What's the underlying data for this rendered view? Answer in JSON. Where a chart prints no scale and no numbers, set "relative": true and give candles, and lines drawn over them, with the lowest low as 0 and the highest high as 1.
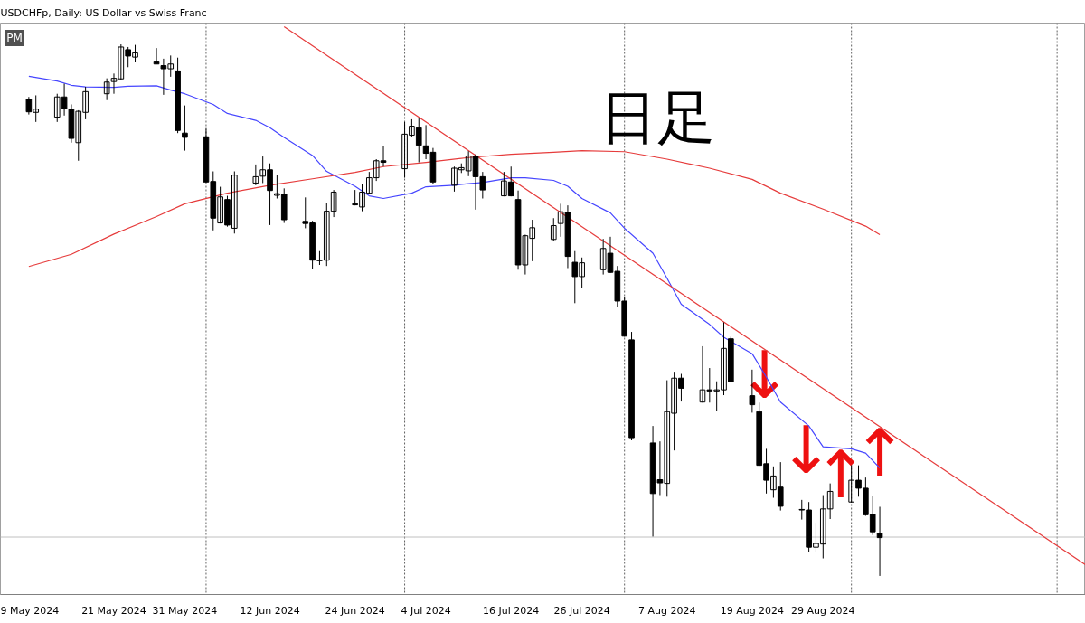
{
  "chart_data": {
    "type": "candlestick",
    "title": "USDCHFp, Daily:  US Dollar vs Swiss Franc",
    "subtitle": "PM",
    "relative": true,
    "color": "#000000",
    "x": [
      "2024-05-09",
      "2024-05-10",
      "2024-05-13",
      "2024-05-14",
      "2024-05-15",
      "2024-05-16",
      "2024-05-17",
      "2024-05-20",
      "2024-05-21",
      "2024-05-22",
      "2024-05-23",
      "2024-05-24",
      "2024-05-27",
      "2024-05-28",
      "2024-05-29",
      "2024-05-30",
      "2024-05-31",
      "2024-06-03",
      "2024-06-04",
      "2024-06-05",
      "2024-06-06",
      "2024-06-07",
      "2024-06-10",
      "2024-06-11",
      "2024-06-12",
      "2024-06-13",
      "2024-06-14",
      "2024-06-17",
      "2024-06-18",
      "2024-06-19",
      "2024-06-20",
      "2024-06-21",
      "2024-06-24",
      "2024-06-25",
      "2024-06-26",
      "2024-06-27",
      "2024-06-28",
      "2024-07-01",
      "2024-07-02",
      "2024-07-03",
      "2024-07-04",
      "2024-07-05",
      "2024-07-08",
      "2024-07-09",
      "2024-07-10",
      "2024-07-11",
      "2024-07-12",
      "2024-07-15",
      "2024-07-16",
      "2024-07-17",
      "2024-07-18",
      "2024-07-19",
      "2024-07-22",
      "2024-07-23",
      "2024-07-24",
      "2024-07-25",
      "2024-07-26",
      "2024-07-29",
      "2024-07-30",
      "2024-07-31",
      "2024-08-01",
      "2024-08-02",
      "2024-08-05",
      "2024-08-06",
      "2024-08-07",
      "2024-08-08",
      "2024-08-09",
      "2024-08-12",
      "2024-08-13",
      "2024-08-14",
      "2024-08-15",
      "2024-08-16",
      "2024-08-19",
      "2024-08-20",
      "2024-08-21",
      "2024-08-22",
      "2024-08-23",
      "2024-08-26",
      "2024-08-27",
      "2024-08-28",
      "2024-08-29",
      "2024-08-30",
      "2024-09-02",
      "2024-09-03",
      "2024-09-04",
      "2024-09-05",
      "2024-09-06"
    ],
    "ohlc": [
      [
        0.897,
        0.901,
        0.868,
        0.873
      ],
      [
        0.872,
        0.904,
        0.854,
        0.878
      ],
      [
        0.863,
        0.907,
        0.854,
        0.901
      ],
      [
        0.901,
        0.926,
        0.866,
        0.879
      ],
      [
        0.878,
        0.887,
        0.815,
        0.823
      ],
      [
        0.815,
        0.876,
        0.781,
        0.874
      ],
      [
        0.872,
        0.92,
        0.859,
        0.911
      ],
      [
        0.907,
        0.936,
        0.895,
        0.929
      ],
      [
        0.93,
        0.945,
        0.907,
        0.936
      ],
      [
        0.935,
        1.0,
        0.932,
        0.995
      ],
      [
        0.99,
        0.995,
        0.957,
        0.978
      ],
      [
        0.976,
        0.999,
        0.966,
        0.984
      ],
      [
        0.967,
        0.993,
        0.963,
        0.963
      ],
      [
        0.96,
        0.973,
        0.905,
        0.954
      ],
      [
        0.954,
        0.979,
        0.939,
        0.963
      ],
      [
        0.95,
        0.975,
        0.833,
        0.838
      ],
      [
        0.833,
        0.885,
        0.8,
        0.825
      ],
      [
        0.826,
        0.841,
        0.74,
        0.741
      ],
      [
        0.742,
        0.761,
        0.65,
        0.673
      ],
      [
        0.664,
        0.732,
        0.663,
        0.713
      ],
      [
        0.708,
        0.715,
        0.657,
        0.66
      ],
      [
        0.654,
        0.761,
        0.644,
        0.754
      ],
      [
        0.739,
        0.774,
        0.735,
        0.751
      ],
      [
        0.752,
        0.789,
        0.739,
        0.764
      ],
      [
        0.764,
        0.776,
        0.66,
        0.725
      ],
      [
        0.716,
        0.755,
        0.71,
        0.719
      ],
      [
        0.718,
        0.729,
        0.664,
        0.67
      ],
      [
        0.667,
        0.712,
        0.654,
        0.663
      ],
      [
        0.664,
        0.668,
        0.577,
        0.594
      ],
      [
        0.593,
        0.611,
        0.585,
        0.594
      ],
      [
        0.594,
        0.702,
        0.583,
        0.686
      ],
      [
        0.686,
        0.726,
        0.675,
        0.722
      ],
      [
        0.7,
        0.726,
        0.697,
        0.698
      ],
      [
        0.694,
        0.737,
        0.686,
        0.722
      ],
      [
        0.72,
        0.76,
        0.719,
        0.749
      ],
      [
        0.749,
        0.784,
        0.743,
        0.781
      ],
      [
        0.781,
        0.809,
        0.77,
        0.778
      ],
      [
        0.766,
        0.854,
        0.749,
        0.831
      ],
      [
        0.829,
        0.859,
        0.825,
        0.846
      ],
      [
        0.843,
        0.861,
        0.778,
        0.81
      ],
      [
        0.809,
        0.848,
        0.784,
        0.795
      ],
      [
        0.797,
        0.805,
        0.738,
        0.741
      ],
      [
        0.735,
        0.77,
        0.723,
        0.767
      ],
      [
        0.764,
        0.776,
        0.758,
        0.768
      ],
      [
        0.762,
        0.799,
        0.752,
        0.79
      ],
      [
        0.789,
        0.793,
        0.689,
        0.751
      ],
      [
        0.751,
        0.76,
        0.71,
        0.726
      ],
      [
        0.715,
        0.76,
        0.714,
        0.743
      ],
      [
        0.741,
        0.77,
        0.714,
        0.715
      ],
      [
        0.708,
        0.725,
        0.576,
        0.585
      ],
      [
        0.585,
        0.642,
        0.567,
        0.64
      ],
      [
        0.635,
        0.67,
        0.592,
        0.655
      ],
      [
        0.633,
        0.673,
        0.63,
        0.659
      ],
      [
        0.663,
        0.7,
        0.638,
        0.685
      ],
      [
        0.684,
        0.697,
        0.579,
        0.601
      ],
      [
        0.59,
        0.611,
        0.513,
        0.563
      ],
      [
        0.563,
        0.599,
        0.542,
        0.589
      ],
      [
        0.576,
        0.634,
        0.567,
        0.616
      ],
      [
        0.607,
        0.638,
        0.57,
        0.571
      ],
      [
        0.573,
        0.583,
        0.506,
        0.517
      ],
      [
        0.517,
        0.525,
        0.45,
        0.451
      ],
      [
        0.444,
        0.459,
        0.255,
        0.26
      ],
      [
        0.25,
        0.282,
        0.074,
        0.155
      ],
      [
        0.181,
        0.253,
        0.152,
        0.175
      ],
      [
        0.174,
        0.368,
        0.149,
        0.309
      ],
      [
        0.306,
        0.384,
        0.236,
        0.372
      ],
      [
        0.372,
        0.38,
        0.328,
        0.353
      ],
      [
        0.327,
        0.432,
        0.326,
        0.35
      ],
      [
        0.35,
        0.391,
        0.326,
        0.348
      ],
      [
        0.348,
        0.366,
        0.31,
        0.35
      ],
      [
        0.35,
        0.477,
        0.34,
        0.428
      ],
      [
        0.446,
        0.45,
        0.364,
        0.365
      ],
      [
        0.339,
        0.388,
        0.307,
        0.322
      ],
      [
        0.309,
        0.326,
        0.207,
        0.208
      ],
      [
        0.211,
        0.239,
        0.155,
        0.18
      ],
      [
        0.162,
        0.206,
        0.147,
        0.188
      ],
      [
        0.167,
        0.214,
        0.123,
        0.131
      ],
      [
        0.125,
        0.143,
        0.106,
        0.124
      ],
      [
        0.124,
        0.139,
        0.045,
        0.054
      ],
      [
        0.054,
        0.1,
        0.045,
        0.061
      ],
      [
        0.06,
        0.152,
        0.033,
        0.126
      ],
      [
        0.126,
        0.174,
        0.107,
        0.159
      ],
      [
        0.139,
        0.208,
        0.138,
        0.18
      ],
      [
        0.18,
        0.208,
        0.149,
        0.165
      ],
      [
        0.165,
        0.185,
        0.113,
        0.115
      ],
      [
        0.116,
        0.151,
        0.077,
        0.083
      ],
      [
        0.08,
        0.13,
        0.0,
        0.072
      ]
    ],
    "series": [
      {
        "type": "line",
        "color": "#4646ff",
        "x": [
          "2024-05-09",
          "2024-05-13",
          "2024-05-15",
          "2024-05-17",
          "2024-05-21",
          "2024-05-23",
          "2024-05-27",
          "2024-05-29",
          "2024-05-31",
          "2024-06-04",
          "2024-06-06",
          "2024-06-10",
          "2024-06-12",
          "2024-06-14",
          "2024-06-18",
          "2024-06-20",
          "2024-06-24",
          "2024-06-26",
          "2024-06-28",
          "2024-07-02",
          "2024-07-04",
          "2024-07-08",
          "2024-07-10",
          "2024-07-12",
          "2024-07-16",
          "2024-07-18",
          "2024-07-22",
          "2024-07-24",
          "2024-07-26",
          "2024-07-30",
          "2024-08-01",
          "2024-08-05",
          "2024-08-07",
          "2024-08-09",
          "2024-08-13",
          "2024-08-15",
          "2024-08-19",
          "2024-08-21",
          "2024-08-23",
          "2024-08-27",
          "2024-08-29",
          "2024-09-02",
          "2024-09-04",
          "2024-09-06"
        ],
        "values": [
          0.94,
          0.931,
          0.923,
          0.92,
          0.919,
          0.921,
          0.922,
          0.914,
          0.907,
          0.887,
          0.87,
          0.857,
          0.843,
          0.825,
          0.791,
          0.761,
          0.733,
          0.715,
          0.71,
          0.72,
          0.732,
          0.735,
          0.738,
          0.74,
          0.749,
          0.749,
          0.744,
          0.733,
          0.71,
          0.683,
          0.654,
          0.607,
          0.56,
          0.511,
          0.473,
          0.449,
          0.418,
          0.374,
          0.327,
          0.282,
          0.243,
          0.239,
          0.231,
          0.203
        ]
      },
      {
        "type": "line",
        "color": "#e63c3c",
        "x": [
          "2024-05-09",
          "2024-05-15",
          "2024-05-21",
          "2024-05-27",
          "2024-05-31",
          "2024-06-06",
          "2024-06-12",
          "2024-06-18",
          "2024-06-24",
          "2024-06-28",
          "2024-07-04",
          "2024-07-10",
          "2024-07-16",
          "2024-07-22",
          "2024-07-26",
          "2024-08-01",
          "2024-08-07",
          "2024-08-13",
          "2024-08-19",
          "2024-08-23",
          "2024-08-29",
          "2024-09-04",
          "2024-09-06"
        ],
        "values": [
          0.582,
          0.605,
          0.643,
          0.676,
          0.7,
          0.72,
          0.735,
          0.747,
          0.759,
          0.77,
          0.778,
          0.787,
          0.793,
          0.797,
          0.8,
          0.798,
          0.784,
          0.767,
          0.746,
          0.72,
          0.69,
          0.658,
          0.642
        ]
      },
      {
        "type": "line",
        "color": "#e63c3c",
        "x": [
          "2024-06-14",
          "2024-10-05"
        ],
        "values": [
          1.033,
          0.021
        ]
      }
    ],
    "xlim": [
      "2024-05-05",
      "2024-10-05"
    ],
    "xticks": [
      {
        "value": "2024-05-09",
        "label": "9 May 2024"
      },
      {
        "value": "2024-05-21",
        "label": "21 May 2024"
      },
      {
        "value": "2024-05-31",
        "label": "31 May 2024"
      },
      {
        "value": "2024-06-12",
        "label": "12 Jun 2024"
      },
      {
        "value": "2024-06-24",
        "label": "24 Jun 2024"
      },
      {
        "value": "2024-07-04",
        "label": "4 Jul 2024"
      },
      {
        "value": "2024-07-16",
        "label": "16 Jul 2024"
      },
      {
        "value": "2024-07-26",
        "label": "26 Jul 2024"
      },
      {
        "value": "2024-08-07",
        "label": "7 Aug 2024"
      },
      {
        "value": "2024-08-19",
        "label": "19 Aug 2024"
      },
      {
        "value": "2024-08-29",
        "label": "29 Aug 2024"
      }
    ],
    "ref_lines": [
      {
        "axis": "x",
        "value": "2024-06-03",
        "color": "#606060",
        "line_style": "dotted"
      },
      {
        "axis": "x",
        "value": "2024-07-01",
        "color": "#606060",
        "line_style": "dotted"
      },
      {
        "axis": "x",
        "value": "2024-08-01",
        "color": "#606060",
        "line_style": "dotted"
      },
      {
        "axis": "x",
        "value": "2024-09-02",
        "color": "#606060",
        "line_style": "dotted"
      },
      {
        "axis": "x",
        "value": "2024-10-01",
        "color": "#606060",
        "line_style": "dotted"
      },
      {
        "axis": "y",
        "value": 0.073,
        "color": "#c0c0c0",
        "line_style": "solid"
      }
    ],
    "annotations": [
      "日足",
      {
        "text": "↓",
        "x": "2024-08-20T18:00",
        "y": 0.426
      },
      {
        "text": "↓",
        "x": "2024-08-26T15:00",
        "y": 0.286
      },
      {
        "text": "↑",
        "x": "2024-08-31T12:00",
        "y": 0.24
      },
      {
        "text": "↑",
        "x": "2024-09-06",
        "y": 0.281
      }
    ]
  }
}
